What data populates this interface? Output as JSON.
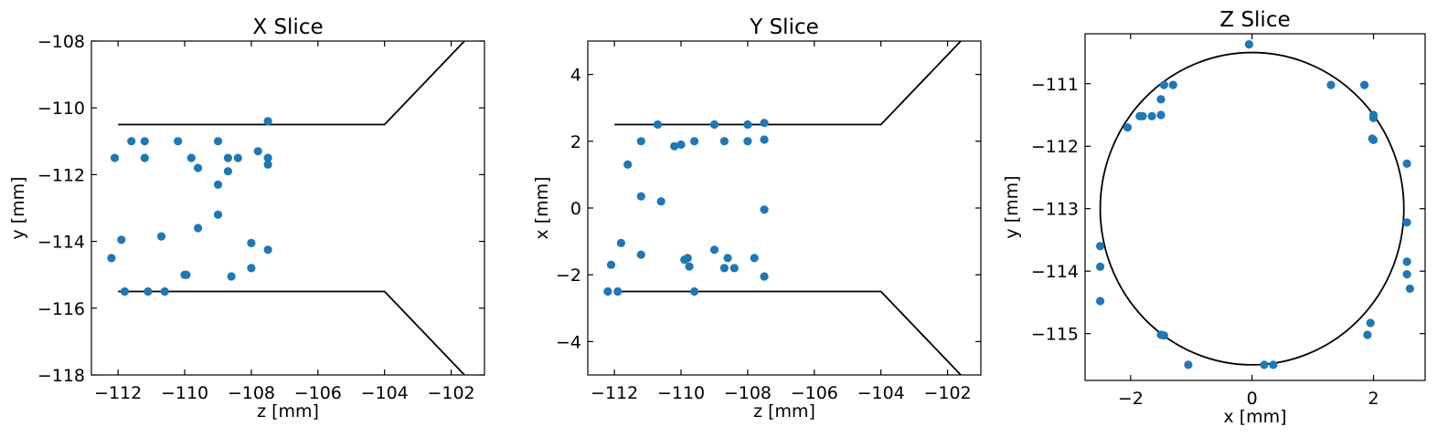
{
  "chart_data": [
    {
      "type": "scatter",
      "title": "X Slice",
      "xlabel": "z [mm]",
      "ylabel": "y [mm]",
      "xlim": [
        -112.8,
        -101.0
      ],
      "ylim": [
        -118,
        -108
      ],
      "xticks": [
        -112,
        -110,
        -108,
        -106,
        -104,
        -102
      ],
      "xtick_labels": [
        "−112",
        "−110",
        "−108",
        "−106",
        "−104",
        "−102"
      ],
      "yticks": [
        -118,
        -116,
        -114,
        -112,
        -110,
        -108
      ],
      "ytick_labels": [
        "−118",
        "−116",
        "−114",
        "−112",
        "−110",
        "−108"
      ],
      "point_color": "#1f77b4",
      "line_color": "#000000",
      "outline": {
        "upper": [
          [
            -112.0,
            -110.5
          ],
          [
            -104.0,
            -110.5
          ],
          [
            -101.6,
            -108.0
          ]
        ],
        "lower": [
          [
            -112.0,
            -115.5
          ],
          [
            -104.0,
            -115.5
          ],
          [
            -101.6,
            -118.0
          ]
        ]
      },
      "points": [
        [
          -112.1,
          -111.5
        ],
        [
          -111.6,
          -111.0
        ],
        [
          -111.2,
          -111.0
        ],
        [
          -111.2,
          -111.5
        ],
        [
          -110.2,
          -111.0
        ],
        [
          -109.8,
          -111.5
        ],
        [
          -109.0,
          -111.0
        ],
        [
          -108.7,
          -111.5
        ],
        [
          -108.4,
          -111.5
        ],
        [
          -107.8,
          -111.3
        ],
        [
          -107.5,
          -110.4
        ],
        [
          -107.5,
          -111.5
        ],
        [
          -107.5,
          -111.7
        ],
        [
          -109.6,
          -111.8
        ],
        [
          -108.7,
          -111.9
        ],
        [
          -109.0,
          -112.3
        ],
        [
          -109.0,
          -113.2
        ],
        [
          -109.6,
          -113.6
        ],
        [
          -112.2,
          -114.5
        ],
        [
          -111.9,
          -113.95
        ],
        [
          -110.7,
          -113.85
        ],
        [
          -108.0,
          -114.05
        ],
        [
          -107.5,
          -114.25
        ],
        [
          -110.0,
          -115.0
        ],
        [
          -109.95,
          -115.0
        ],
        [
          -108.6,
          -115.05
        ],
        [
          -108.0,
          -114.8
        ],
        [
          -111.8,
          -115.5
        ],
        [
          -111.1,
          -115.5
        ],
        [
          -110.6,
          -115.5
        ]
      ]
    },
    {
      "type": "scatter",
      "title": "Y Slice",
      "xlabel": "z [mm]",
      "ylabel": "x [mm]",
      "xlim": [
        -112.8,
        -101.0
      ],
      "ylim": [
        -5,
        5
      ],
      "xticks": [
        -112,
        -110,
        -108,
        -106,
        -104,
        -102
      ],
      "xtick_labels": [
        "−112",
        "−110",
        "−108",
        "−106",
        "−104",
        "−102"
      ],
      "yticks": [
        -4,
        -2,
        0,
        2,
        4
      ],
      "ytick_labels": [
        "−4",
        "−2",
        "0",
        "2",
        "4"
      ],
      "point_color": "#1f77b4",
      "line_color": "#000000",
      "outline": {
        "upper": [
          [
            -112.0,
            2.5
          ],
          [
            -104.0,
            2.5
          ],
          [
            -101.6,
            5.0
          ]
        ],
        "lower": [
          [
            -112.0,
            -2.5
          ],
          [
            -104.0,
            -2.5
          ],
          [
            -101.6,
            -5.0
          ]
        ]
      },
      "points": [
        [
          -110.7,
          2.5
        ],
        [
          -109.0,
          2.5
        ],
        [
          -108.0,
          2.5
        ],
        [
          -107.5,
          2.55
        ],
        [
          -111.2,
          2.0
        ],
        [
          -110.2,
          1.85
        ],
        [
          -110.0,
          1.9
        ],
        [
          -109.6,
          2.0
        ],
        [
          -108.7,
          2.0
        ],
        [
          -108.0,
          2.0
        ],
        [
          -107.5,
          2.05
        ],
        [
          -111.6,
          1.3
        ],
        [
          -111.2,
          0.35
        ],
        [
          -110.6,
          0.2
        ],
        [
          -107.5,
          -0.05
        ],
        [
          -111.8,
          -1.05
        ],
        [
          -111.2,
          -1.4
        ],
        [
          -112.1,
          -1.7
        ],
        [
          -109.0,
          -1.25
        ],
        [
          -109.8,
          -1.5
        ],
        [
          -109.9,
          -1.55
        ],
        [
          -109.75,
          -1.75
        ],
        [
          -108.6,
          -1.5
        ],
        [
          -107.8,
          -1.5
        ],
        [
          -108.7,
          -1.8
        ],
        [
          -108.4,
          -1.8
        ],
        [
          -107.5,
          -2.05
        ],
        [
          -112.2,
          -2.5
        ],
        [
          -111.9,
          -2.5
        ],
        [
          -109.6,
          -2.5
        ]
      ]
    },
    {
      "type": "scatter",
      "title": "Z Slice",
      "xlabel": "x [mm]",
      "ylabel": "y [mm]",
      "xlim": [
        -2.75,
        2.85
      ],
      "ylim": [
        -115.75,
        -110.2
      ],
      "xticks": [
        -2,
        0,
        2
      ],
      "xtick_labels": [
        "−2",
        "0",
        "2"
      ],
      "yticks": [
        -111,
        -112,
        -113,
        -114,
        -115
      ],
      "ytick_labels": [
        "−111",
        "−112",
        "−113",
        "−114",
        "−115"
      ],
      "point_color": "#1f77b4",
      "line_color": "#000000",
      "circle": {
        "cx": 0,
        "cy": -113.0,
        "r": 2.5
      },
      "points": [
        [
          -0.05,
          -110.37
        ],
        [
          -1.45,
          -111.02
        ],
        [
          -1.3,
          -111.02
        ],
        [
          -1.5,
          -111.25
        ],
        [
          -1.5,
          -111.5
        ],
        [
          -1.65,
          -111.52
        ],
        [
          -1.85,
          -111.52
        ],
        [
          -1.8,
          -111.52
        ],
        [
          -2.05,
          -111.7
        ],
        [
          1.3,
          -111.02
        ],
        [
          1.85,
          -111.02
        ],
        [
          2.0,
          -111.5
        ],
        [
          2.0,
          -111.55
        ],
        [
          1.98,
          -111.88
        ],
        [
          2.0,
          -111.9
        ],
        [
          2.55,
          -112.28
        ],
        [
          2.55,
          -113.22
        ],
        [
          -2.5,
          -113.6
        ],
        [
          -2.5,
          -113.93
        ],
        [
          -2.5,
          -114.48
        ],
        [
          2.55,
          -113.85
        ],
        [
          2.55,
          -114.05
        ],
        [
          2.6,
          -114.28
        ],
        [
          -1.5,
          -115.02
        ],
        [
          -1.45,
          -115.03
        ],
        [
          1.95,
          -114.83
        ],
        [
          1.9,
          -115.02
        ],
        [
          -1.05,
          -115.5
        ],
        [
          0.2,
          -115.5
        ],
        [
          0.35,
          -115.5
        ]
      ]
    }
  ]
}
